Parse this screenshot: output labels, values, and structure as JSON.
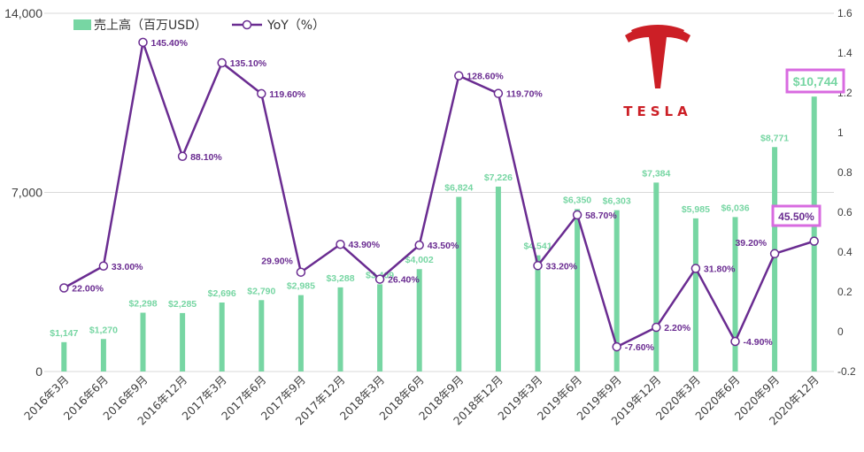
{
  "colors": {
    "bar": "#77d6a3",
    "line": "#6a2c91",
    "marker_fill": "#ffffff",
    "highlight_box": "#d86be0",
    "logo_red": "#cc1f26",
    "grid": "#d9d9d9",
    "axis_text": "#404040"
  },
  "legend": {
    "bar_label": "売上高（百万USD）",
    "line_label": "YoY（%）"
  },
  "logo": {
    "wordmark": "TESLA"
  },
  "chart_data": {
    "type": "bar+line",
    "categories": [
      "2016年3月",
      "2016年6月",
      "2016年9月",
      "2016年12月",
      "2017年3月",
      "2017年6月",
      "2017年9月",
      "2017年12月",
      "2018年3月",
      "2018年6月",
      "2018年9月",
      "2018年12月",
      "2019年3月",
      "2019年6月",
      "2019年9月",
      "2019年12月",
      "2020年3月",
      "2020年6月",
      "2020年9月",
      "2020年12月"
    ],
    "left_axis": {
      "min": 0,
      "max": 14000,
      "ticks": [
        "0",
        "7,000",
        "14,000"
      ],
      "tick_values": [
        0,
        7000,
        14000
      ]
    },
    "right_axis": {
      "min": -0.2,
      "max": 1.6,
      "ticks": [
        "-0.2",
        "0",
        "0.2",
        "0.4",
        "0.6",
        "0.8",
        "1",
        "1.2",
        "1.4",
        "1.6"
      ],
      "tick_values": [
        -0.2,
        0,
        0.2,
        0.4,
        0.6,
        0.8,
        1,
        1.2,
        1.4,
        1.6
      ]
    },
    "series": [
      {
        "name": "売上高（百万USD）",
        "type": "bar",
        "axis": "left",
        "values": [
          1147,
          1270,
          2298,
          2285,
          2696,
          2790,
          2985,
          3288,
          3409,
          4002,
          6824,
          7226,
          4541,
          6350,
          6303,
          7384,
          5985,
          6036,
          8771,
          10744
        ],
        "labels": [
          "$1,147",
          "$1,270",
          "$2,298",
          "$2,285",
          "$2,696",
          "$2,790",
          "$2,985",
          "$3,288",
          "$3,409",
          "$4,002",
          "$6,824",
          "$7,226",
          "$4,541",
          "$6,350",
          "$6,303",
          "$7,384",
          "$5,985",
          "$6,036",
          "$8,771",
          "$10,744"
        ]
      },
      {
        "name": "YoY（%）",
        "type": "line",
        "axis": "right",
        "values": [
          0.22,
          0.33,
          1.454,
          0.881,
          1.351,
          1.196,
          0.299,
          0.439,
          0.264,
          0.435,
          1.286,
          1.197,
          0.332,
          0.587,
          -0.076,
          0.022,
          0.318,
          -0.049,
          0.392,
          0.455
        ],
        "labels": [
          "22.00%",
          "33.00%",
          "145.40%",
          "88.10%",
          "135.10%",
          "119.60%",
          "29.90%",
          "43.90%",
          "26.40%",
          "43.50%",
          "128.60%",
          "119.70%",
          "33.20%",
          "58.70%",
          "-7.60%",
          "2.20%",
          "31.80%",
          "-4.90%",
          "39.20%",
          "45.50%"
        ]
      }
    ],
    "highlighted": {
      "bar_index": 19,
      "line_index": 19
    },
    "grid": true,
    "legend_position": "top-left"
  }
}
